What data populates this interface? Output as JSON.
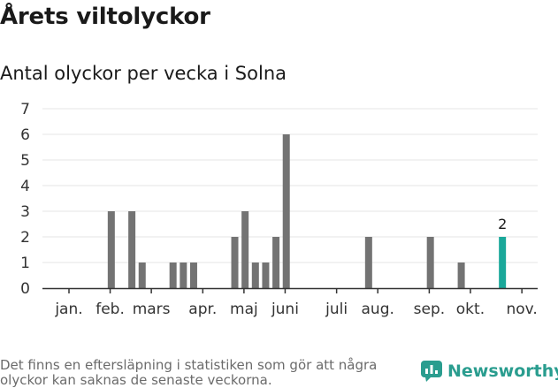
{
  "header": {
    "title": "Årets viltolyckor",
    "subtitle": "Antal olyckor per vecka i Solna"
  },
  "footer": {
    "note": "Det finns en eftersläpning i statistiken som gör att några olyckor kan saknas de senaste veckorna.",
    "brand": "Newsworthy"
  },
  "colors": {
    "bar": "#737373",
    "highlight": "#1aa89a",
    "grid": "#e6e6e6",
    "axis": "#333333",
    "brand": "#2a9d8f"
  },
  "chart_data": {
    "type": "bar",
    "title": "Antal olyckor per vecka i Solna",
    "xlabel": "",
    "ylabel": "",
    "ylim": [
      0,
      7
    ],
    "yticks": [
      "0",
      "1",
      "2",
      "3",
      "4",
      "5",
      "6",
      "7"
    ],
    "grid": true,
    "x_unit": "week",
    "series": [
      {
        "name": "Antal olyckor",
        "points": [
          {
            "week": 7,
            "value": 3
          },
          {
            "week": 9,
            "value": 3
          },
          {
            "week": 10,
            "value": 1
          },
          {
            "week": 13,
            "value": 1
          },
          {
            "week": 14,
            "value": 1
          },
          {
            "week": 15,
            "value": 1
          },
          {
            "week": 19,
            "value": 2
          },
          {
            "week": 20,
            "value": 3
          },
          {
            "week": 21,
            "value": 1
          },
          {
            "week": 22,
            "value": 1
          },
          {
            "week": 23,
            "value": 2
          },
          {
            "week": 24,
            "value": 6
          },
          {
            "week": 32,
            "value": 2
          },
          {
            "week": 38,
            "value": 2
          },
          {
            "week": 41,
            "value": 1
          },
          {
            "week": 45,
            "value": 2,
            "highlight": true,
            "label": "2"
          }
        ]
      }
    ],
    "months": [
      {
        "label": "jan.",
        "week": 1
      },
      {
        "label": "feb.",
        "week": 5
      },
      {
        "label": "mars",
        "week": 9
      },
      {
        "label": "apr.",
        "week": 14
      },
      {
        "label": "maj",
        "week": 18
      },
      {
        "label": "juni",
        "week": 22
      },
      {
        "label": "juli",
        "week": 27
      },
      {
        "label": "aug.",
        "week": 31
      },
      {
        "label": "sep.",
        "week": 36
      },
      {
        "label": "okt.",
        "week": 40
      },
      {
        "label": "nov.",
        "week": 45
      }
    ]
  }
}
